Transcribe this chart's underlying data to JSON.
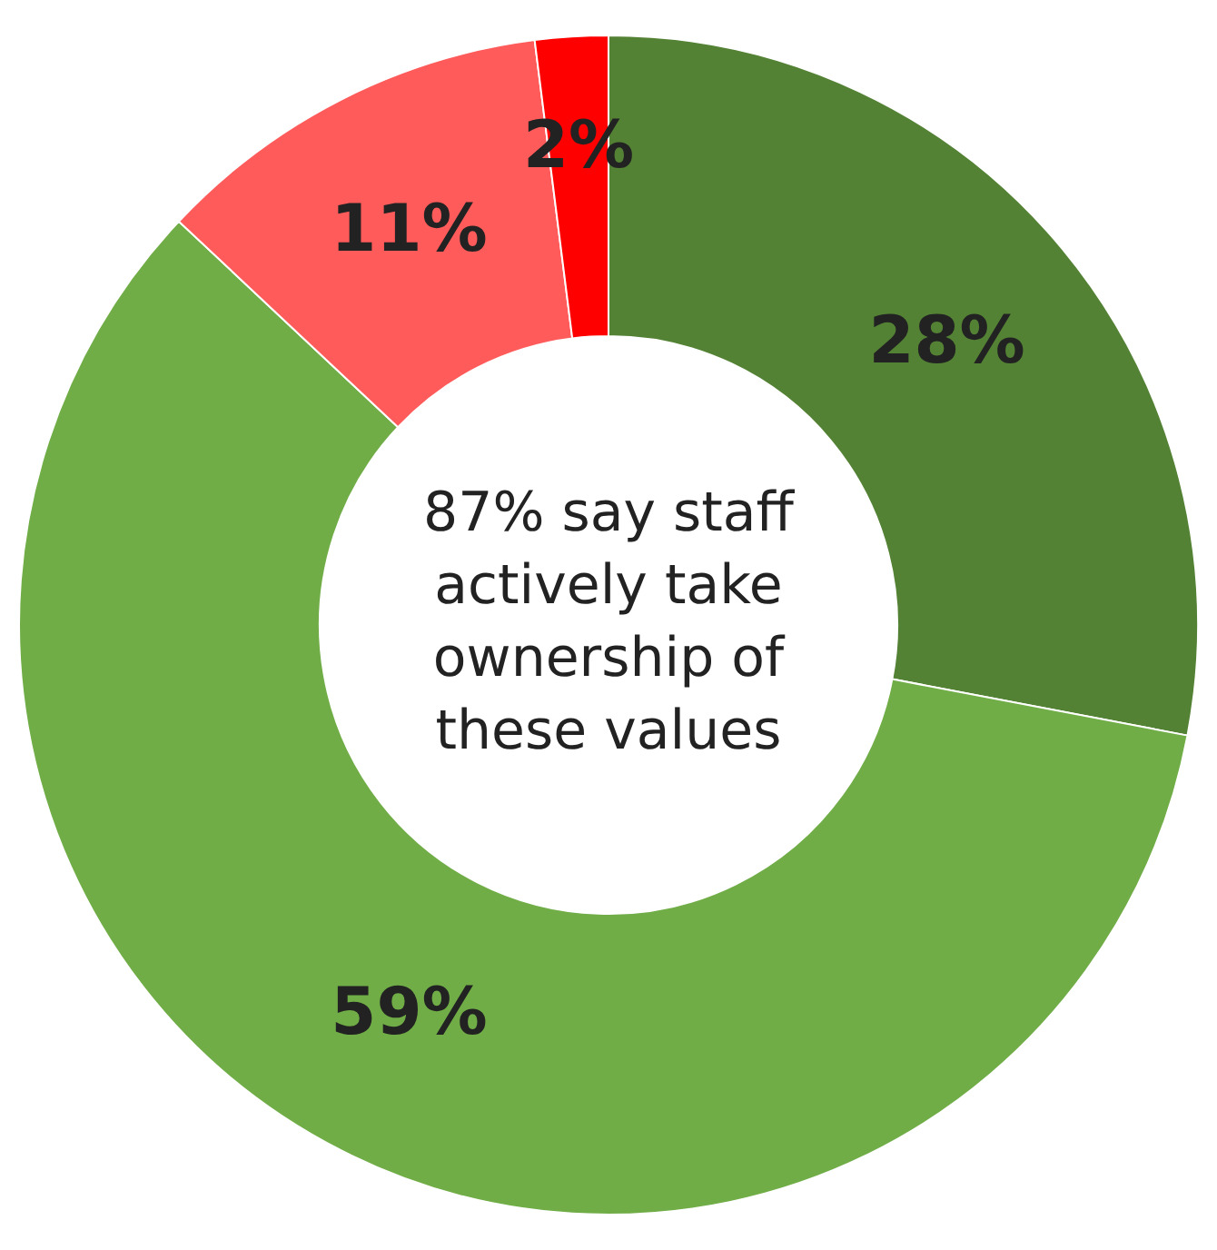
{
  "chart_data": {
    "type": "donut",
    "categories": [
      null,
      null,
      null,
      null
    ],
    "values": [
      28,
      59,
      11,
      2
    ],
    "colors": [
      "#548235",
      "#70ad47",
      "#ff5b5b",
      "#ff0000"
    ],
    "value_labels": [
      "28%",
      "59%",
      "11%",
      "2%"
    ],
    "annotations": [
      "87% say staff actively take ownership of these values"
    ],
    "legend": false
  }
}
